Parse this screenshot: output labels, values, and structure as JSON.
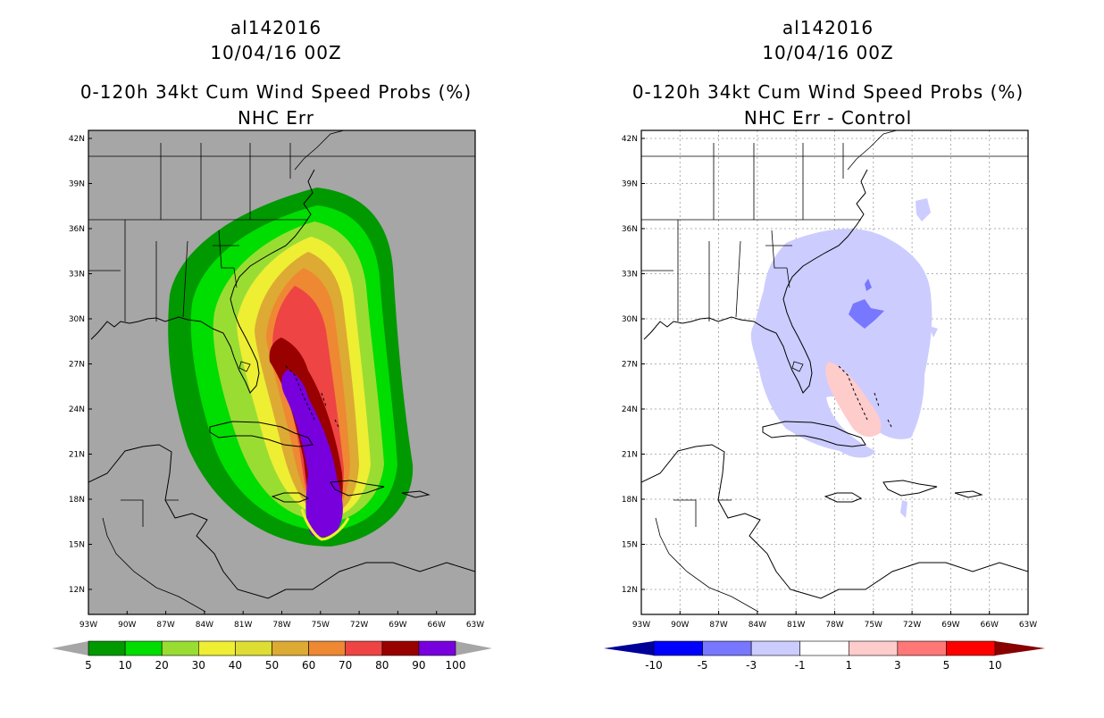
{
  "left_panel": {
    "title_lines": [
      "al142016",
      "10/04/16 00Z",
      "0-120h 34kt Cum Wind Speed Probs (%)",
      "NHC Err"
    ],
    "background": "#a6a6a6",
    "lat_labels": [
      "42N",
      "39N",
      "36N",
      "33N",
      "30N",
      "27N",
      "24N",
      "21N",
      "18N",
      "15N",
      "12N"
    ],
    "lon_labels": [
      "93W",
      "90W",
      "87W",
      "84W",
      "81W",
      "78W",
      "75W",
      "72W",
      "69W",
      "66W",
      "63W"
    ],
    "colorbar": {
      "colors": [
        "#009900",
        "#00dd00",
        "#99dd33",
        "#eeee33",
        "#dddd33",
        "#ddaa33",
        "#ee8833",
        "#ee4444",
        "#990000",
        "#7700dd"
      ],
      "end_color": "#a6a6a6",
      "labels": [
        "5",
        "10",
        "20",
        "30",
        "40",
        "50",
        "60",
        "70",
        "80",
        "90",
        "100"
      ]
    }
  },
  "right_panel": {
    "title_lines": [
      "al142016",
      "10/04/16 00Z",
      "0-120h 34kt Cum Wind Speed Probs (%)",
      "NHC Err - Control"
    ],
    "background": "#ffffff",
    "lat_labels": [
      "42N",
      "39N",
      "36N",
      "33N",
      "30N",
      "27N",
      "24N",
      "21N",
      "18N",
      "15N",
      "12N"
    ],
    "lon_labels": [
      "93W",
      "90W",
      "87W",
      "84W",
      "81W",
      "78W",
      "75W",
      "72W",
      "69W",
      "66W",
      "63W"
    ],
    "colorbar": {
      "colors": [
        "#0000ff",
        "#7777ff",
        "#ccccff",
        "#ffffff",
        "#ffcccc",
        "#ff7777",
        "#ff0000"
      ],
      "left_end_color": "#000099",
      "right_end_color": "#880000",
      "labels": [
        "-10",
        "-5",
        "-3",
        "-1",
        "1",
        "3",
        "5",
        "10"
      ]
    }
  }
}
